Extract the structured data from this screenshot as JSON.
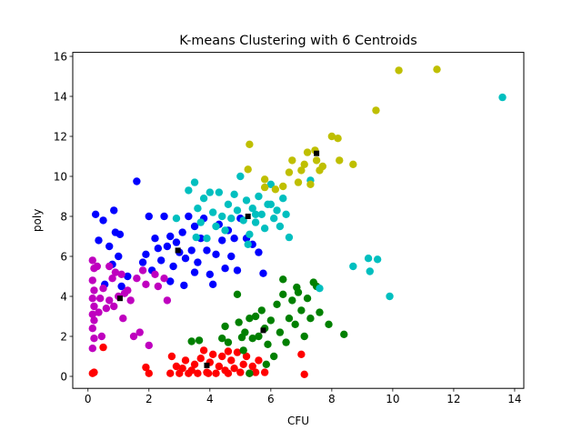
{
  "chart_data": {
    "type": "scatter",
    "title": "K-means Clustering with 6 Centroids",
    "xlabel": "CFU",
    "ylabel": "poly",
    "xlim": [
      -0.5,
      14.3
    ],
    "ylim": [
      -0.6,
      16.2
    ],
    "xticks": [
      0,
      2,
      4,
      6,
      8,
      10,
      12,
      14
    ],
    "yticks": [
      0,
      2,
      4,
      6,
      8,
      10,
      12,
      14,
      16
    ],
    "grid": false,
    "series": [
      {
        "color": "#ff0000",
        "points": [
          [
            0.2,
            0.2
          ],
          [
            0.15,
            0.15
          ],
          [
            0.5,
            1.45
          ],
          [
            1.9,
            0.45
          ],
          [
            2.0,
            0.15
          ],
          [
            2.7,
            0.15
          ],
          [
            2.75,
            1.0
          ],
          [
            2.9,
            0.5
          ],
          [
            3.0,
            0.15
          ],
          [
            3.1,
            0.4
          ],
          [
            3.2,
            0.8
          ],
          [
            3.3,
            0.15
          ],
          [
            3.4,
            0.3
          ],
          [
            3.5,
            0.6
          ],
          [
            3.6,
            0.15
          ],
          [
            3.7,
            0.9
          ],
          [
            3.8,
            1.3
          ],
          [
            3.9,
            0.2
          ],
          [
            4.0,
            0.7
          ],
          [
            4.1,
            1.1
          ],
          [
            4.2,
            0.15
          ],
          [
            4.3,
            0.5
          ],
          [
            4.4,
            1.0
          ],
          [
            4.5,
            0.3
          ],
          [
            4.6,
            0.15
          ],
          [
            4.7,
            0.8
          ],
          [
            4.8,
            0.4
          ],
          [
            4.9,
            1.2
          ],
          [
            5.0,
            0.2
          ],
          [
            5.1,
            0.6
          ],
          [
            5.2,
            1.0
          ],
          [
            5.3,
            0.15
          ],
          [
            5.4,
            0.5
          ],
          [
            5.5,
            0.2
          ],
          [
            5.6,
            0.8
          ],
          [
            5.8,
            0.2
          ],
          [
            7.0,
            1.1
          ],
          [
            7.1,
            0.1
          ],
          [
            3.95,
            0.15
          ],
          [
            4.6,
            1.25
          ]
        ]
      },
      {
        "color": "#008000",
        "points": [
          [
            3.4,
            1.75
          ],
          [
            3.65,
            1.8
          ],
          [
            4.5,
            2.5
          ],
          [
            4.6,
            1.7
          ],
          [
            4.9,
            4.1
          ],
          [
            4.95,
            2.7
          ],
          [
            5.1,
            1.3
          ],
          [
            5.3,
            2.9
          ],
          [
            5.4,
            1.9
          ],
          [
            5.5,
            3.0
          ],
          [
            5.6,
            2.0
          ],
          [
            5.7,
            3.3
          ],
          [
            5.8,
            2.4
          ],
          [
            5.9,
            1.6
          ],
          [
            6.0,
            2.8
          ],
          [
            6.1,
            1.0
          ],
          [
            6.2,
            3.6
          ],
          [
            6.3,
            2.2
          ],
          [
            6.4,
            4.1
          ],
          [
            6.5,
            1.7
          ],
          [
            6.6,
            2.9
          ],
          [
            6.7,
            3.8
          ],
          [
            6.8,
            2.6
          ],
          [
            6.9,
            4.2
          ],
          [
            7.0,
            3.3
          ],
          [
            7.1,
            2.0
          ],
          [
            7.2,
            3.9
          ],
          [
            7.3,
            2.9
          ],
          [
            7.4,
            4.7
          ],
          [
            7.5,
            4.5
          ],
          [
            7.6,
            3.2
          ],
          [
            7.9,
            2.6
          ],
          [
            8.4,
            2.1
          ],
          [
            6.4,
            4.85
          ],
          [
            5.85,
            0.6
          ],
          [
            5.3,
            0.15
          ],
          [
            4.4,
            1.9
          ],
          [
            5.05,
            1.95
          ],
          [
            6.85,
            4.45
          ],
          [
            5.15,
            2.2
          ]
        ]
      },
      {
        "color": "#0000ff",
        "points": [
          [
            0.25,
            8.1
          ],
          [
            0.35,
            6.8
          ],
          [
            0.5,
            7.8
          ],
          [
            0.55,
            4.6
          ],
          [
            0.7,
            6.5
          ],
          [
            0.8,
            5.6
          ],
          [
            0.85,
            8.3
          ],
          [
            0.9,
            7.2
          ],
          [
            1.0,
            6.0
          ],
          [
            1.05,
            7.1
          ],
          [
            1.1,
            4.5
          ],
          [
            1.3,
            5.0
          ],
          [
            1.6,
            9.75
          ],
          [
            1.8,
            5.7
          ],
          [
            1.9,
            6.1
          ],
          [
            2.0,
            8.0
          ],
          [
            2.1,
            5.3
          ],
          [
            2.2,
            6.9
          ],
          [
            2.3,
            6.4
          ],
          [
            2.4,
            5.8
          ],
          [
            2.5,
            8.0
          ],
          [
            2.6,
            6.5
          ],
          [
            2.7,
            7.0
          ],
          [
            2.8,
            5.5
          ],
          [
            2.9,
            6.7
          ],
          [
            3.0,
            6.2
          ],
          [
            3.1,
            7.2
          ],
          [
            3.2,
            5.9
          ],
          [
            3.3,
            8.0
          ],
          [
            3.4,
            6.3
          ],
          [
            3.5,
            7.5
          ],
          [
            3.6,
            5.7
          ],
          [
            3.7,
            6.9
          ],
          [
            3.8,
            7.9
          ],
          [
            3.9,
            6.3
          ],
          [
            4.0,
            5.1
          ],
          [
            4.1,
            4.6
          ],
          [
            4.2,
            6.1
          ],
          [
            4.3,
            7.6
          ],
          [
            4.4,
            6.8
          ],
          [
            4.5,
            5.4
          ],
          [
            4.6,
            7.3
          ],
          [
            4.7,
            6.0
          ],
          [
            4.8,
            6.9
          ],
          [
            4.9,
            5.3
          ],
          [
            5.0,
            7.9
          ],
          [
            5.2,
            6.9
          ],
          [
            5.4,
            6.6
          ],
          [
            5.6,
            6.2
          ],
          [
            5.75,
            5.15
          ],
          [
            3.5,
            5.2
          ],
          [
            3.15,
            4.55
          ],
          [
            2.7,
            4.75
          ]
        ]
      },
      {
        "color": "#00bfbf",
        "points": [
          [
            2.9,
            7.9
          ],
          [
            3.3,
            9.3
          ],
          [
            3.5,
            9.7
          ],
          [
            3.6,
            8.4
          ],
          [
            3.7,
            7.7
          ],
          [
            3.8,
            8.9
          ],
          [
            3.9,
            6.9
          ],
          [
            4.0,
            9.2
          ],
          [
            4.1,
            8.2
          ],
          [
            4.2,
            7.5
          ],
          [
            4.3,
            9.2
          ],
          [
            4.4,
            8.0
          ],
          [
            4.5,
            7.3
          ],
          [
            4.6,
            8.6
          ],
          [
            4.7,
            7.9
          ],
          [
            4.8,
            9.1
          ],
          [
            4.9,
            8.3
          ],
          [
            5.0,
            10.0
          ],
          [
            5.1,
            7.8
          ],
          [
            5.2,
            8.8
          ],
          [
            5.3,
            7.1
          ],
          [
            5.4,
            8.4
          ],
          [
            5.5,
            7.7
          ],
          [
            5.6,
            9.0
          ],
          [
            5.7,
            8.1
          ],
          [
            5.8,
            7.4
          ],
          [
            5.9,
            8.6
          ],
          [
            6.0,
            9.6
          ],
          [
            6.1,
            7.9
          ],
          [
            6.2,
            8.3
          ],
          [
            6.3,
            7.5
          ],
          [
            6.4,
            8.9
          ],
          [
            6.5,
            8.1
          ],
          [
            6.6,
            6.95
          ],
          [
            6.0,
            8.6
          ],
          [
            5.5,
            8.1
          ],
          [
            5.25,
            6.6
          ],
          [
            3.55,
            6.95
          ],
          [
            7.3,
            9.8
          ],
          [
            7.6,
            4.4
          ],
          [
            8.7,
            5.5
          ],
          [
            9.2,
            5.9
          ],
          [
            9.25,
            5.25
          ],
          [
            9.5,
            5.85
          ],
          [
            9.9,
            4.0
          ],
          [
            13.6,
            13.95
          ]
        ]
      },
      {
        "color": "#bf00bf",
        "points": [
          [
            0.15,
            5.8
          ],
          [
            0.2,
            5.4
          ],
          [
            0.15,
            4.8
          ],
          [
            0.2,
            4.3
          ],
          [
            0.15,
            3.9
          ],
          [
            0.2,
            3.5
          ],
          [
            0.15,
            3.1
          ],
          [
            0.2,
            2.8
          ],
          [
            0.15,
            2.4
          ],
          [
            0.2,
            1.9
          ],
          [
            0.15,
            1.4
          ],
          [
            0.3,
            5.5
          ],
          [
            0.35,
            3.2
          ],
          [
            0.4,
            3.9
          ],
          [
            0.45,
            2.0
          ],
          [
            0.5,
            4.4
          ],
          [
            0.6,
            3.4
          ],
          [
            0.7,
            3.8
          ],
          [
            0.8,
            4.9
          ],
          [
            0.85,
            3.5
          ],
          [
            0.9,
            5.2
          ],
          [
            1.0,
            4.0
          ],
          [
            1.1,
            5.1
          ],
          [
            1.15,
            2.9
          ],
          [
            1.3,
            4.3
          ],
          [
            1.4,
            3.8
          ],
          [
            1.5,
            2.0
          ],
          [
            1.6,
            4.9
          ],
          [
            1.7,
            2.2
          ],
          [
            1.8,
            5.3
          ],
          [
            1.9,
            4.6
          ],
          [
            2.0,
            1.55
          ],
          [
            2.2,
            5.1
          ],
          [
            2.3,
            4.5
          ],
          [
            2.5,
            4.9
          ],
          [
            2.6,
            3.8
          ],
          [
            0.7,
            5.5
          ],
          [
            1.2,
            4.15
          ]
        ]
      },
      {
        "color": "#bfbf00",
        "points": [
          [
            5.3,
            11.6
          ],
          [
            5.25,
            10.35
          ],
          [
            5.8,
            9.45
          ],
          [
            5.8,
            9.85
          ],
          [
            6.15,
            9.35
          ],
          [
            6.4,
            9.5
          ],
          [
            6.6,
            10.2
          ],
          [
            6.7,
            10.8
          ],
          [
            6.9,
            9.7
          ],
          [
            7.0,
            10.3
          ],
          [
            7.1,
            10.6
          ],
          [
            7.2,
            11.2
          ],
          [
            7.3,
            9.6
          ],
          [
            7.5,
            10.8
          ],
          [
            7.6,
            10.3
          ],
          [
            7.7,
            10.5
          ],
          [
            8.0,
            12.0
          ],
          [
            8.2,
            11.9
          ],
          [
            8.25,
            10.8
          ],
          [
            8.7,
            10.6
          ],
          [
            9.45,
            13.3
          ],
          [
            10.2,
            15.3
          ],
          [
            11.45,
            15.35
          ],
          [
            7.45,
            11.3
          ]
        ]
      }
    ],
    "centroids": {
      "color": "#000000",
      "points": [
        [
          1.05,
          3.9
        ],
        [
          2.95,
          6.3
        ],
        [
          3.9,
          0.55
        ],
        [
          5.25,
          8.0
        ],
        [
          5.75,
          2.3
        ],
        [
          7.5,
          11.15
        ]
      ]
    }
  }
}
